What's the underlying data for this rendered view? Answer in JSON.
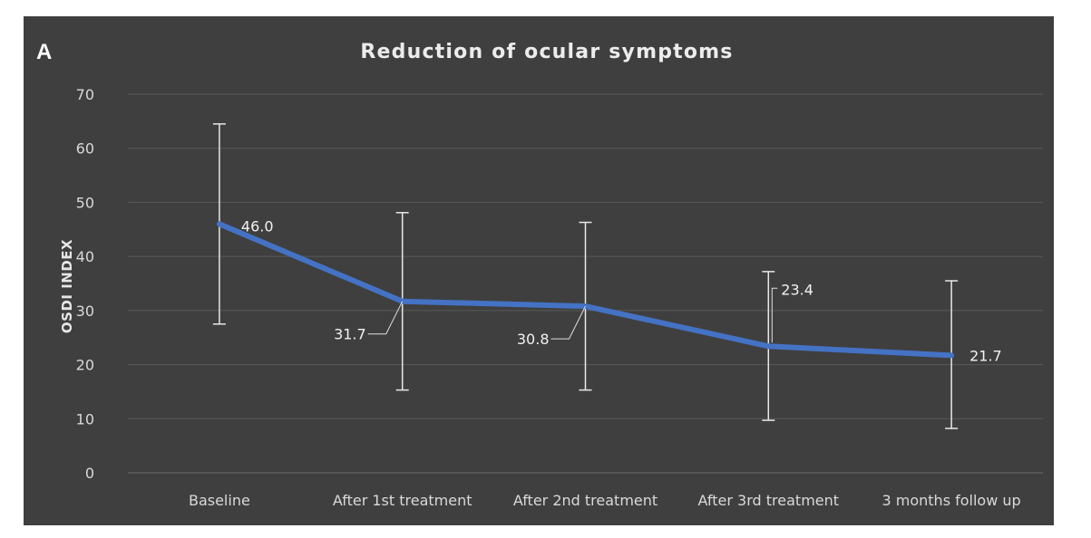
{
  "panel_label": "A",
  "chart_data": {
    "type": "line",
    "title": "Reduction of ocular symptoms",
    "xlabel": "",
    "ylabel": "OSDI INDEX",
    "ylim": [
      0,
      70
    ],
    "yticks": [
      0,
      10,
      20,
      30,
      40,
      50,
      60,
      70
    ],
    "grid": true,
    "categories": [
      "Baseline",
      "After 1st treatment",
      "After 2nd treatment",
      "After 3rd treatment",
      "3 months follow up"
    ],
    "series": [
      {
        "values": [
          46.0,
          31.7,
          30.8,
          23.4,
          21.7
        ],
        "error_low": [
          27.5,
          15.3,
          15.3,
          9.7,
          8.2
        ],
        "error_high": [
          64.5,
          48.1,
          46.3,
          37.2,
          35.5
        ],
        "data_labels": [
          "46.0",
          "31.7",
          "30.8",
          "23.4",
          "21.7"
        ]
      }
    ],
    "colors": {
      "line": "#4472c4",
      "background": "#3f3f3f",
      "grid": "#5a5a5a",
      "error_bar": "#e8e8e8"
    }
  }
}
